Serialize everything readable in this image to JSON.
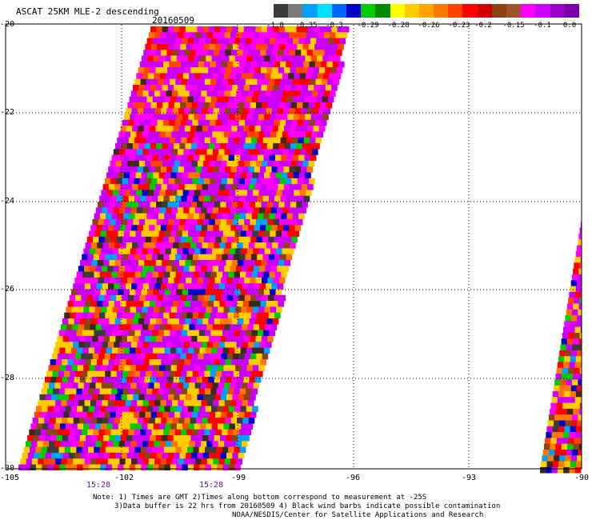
{
  "title": "ASCAT 25KM MLE-2 descending",
  "date": "20160509",
  "colorbar": {
    "colors": [
      "#3b3b3b",
      "#7a7a7a",
      "#00a0ff",
      "#00e0ff",
      "#0066ff",
      "#0000cc",
      "#00cc00",
      "#008800",
      "#ffff00",
      "#ffcc00",
      "#ffa500",
      "#ff7700",
      "#ff4400",
      "#ff0000",
      "#cc0000",
      "#8b4513",
      "#a0522d",
      "#ff00ff",
      "#cc00ff",
      "#9900cc",
      "#7700aa"
    ],
    "tick_labels": [
      "-1.0",
      "-0.35",
      "-0.3",
      "-0.29",
      "-0.28",
      "-0.26",
      "-0.23",
      "-0.2",
      "-0.15",
      "-0.1",
      "0.0"
    ]
  },
  "axes": {
    "lat_labels": [
      "-20",
      "-22",
      "-24",
      "-26",
      "-28",
      "-30"
    ],
    "lon_labels": [
      "-105",
      "-102",
      "-99",
      "-96",
      "-93",
      "-90"
    ],
    "time_labels": [
      "15:28",
      "15:28"
    ]
  },
  "palette": [
    "#3b2a1a",
    "#8b4513",
    "#a0522d",
    "#ff0000",
    "#ff4400",
    "#ff7700",
    "#ffa500",
    "#ffcc00",
    "#ffff00",
    "#00cc00",
    "#008800",
    "#00e0ff",
    "#00a0ff",
    "#0066ff",
    "#0000cc",
    "#ff00ff",
    "#cc00ff",
    "#9900cc",
    "#3b3b3b"
  ],
  "notes": [
    "Note: 1) Times are GMT 2)Times along bottom correspond to measurement at -25S",
    "3)Data buffer is 22 hrs from 20160509 4) Black wind barbs indicate possible contamination",
    "NOAA/NESDIS/Center for Satellite Applications and Research"
  ]
}
